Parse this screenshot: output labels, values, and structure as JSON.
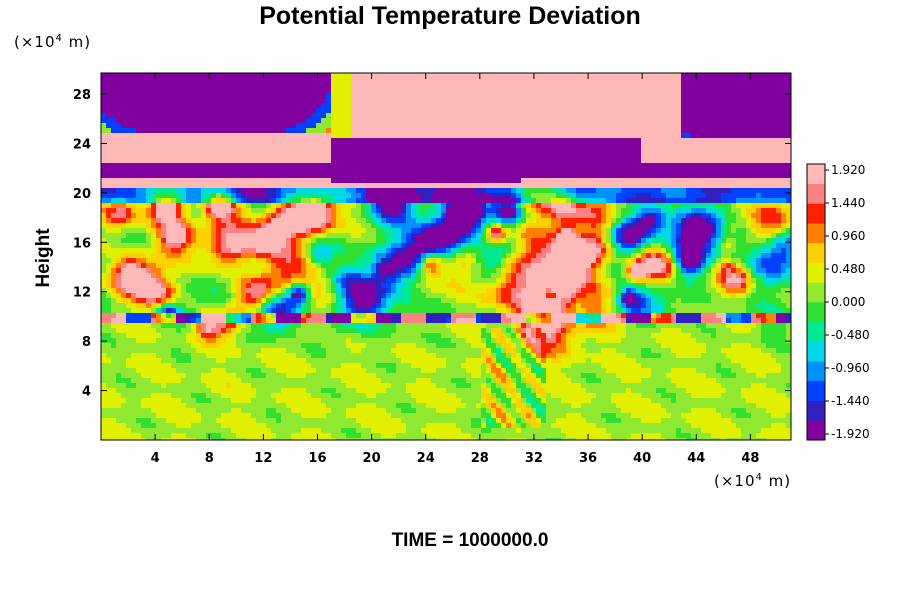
{
  "chart_data": {
    "type": "heatmap",
    "title": "Potential Temperature Deviation",
    "xlabel": "",
    "ylabel": "Height",
    "x_unit": {
      "prefix": "(×10",
      "exp": "4",
      "suffix": " m)"
    },
    "y_unit": {
      "prefix": "(×10",
      "exp": "4",
      "suffix": " m)"
    },
    "xlim": [
      0,
      51
    ],
    "ylim": [
      0,
      29.7
    ],
    "x_ticks": [
      "4",
      "8",
      "12",
      "16",
      "20",
      "24",
      "28",
      "32",
      "36",
      "40",
      "44",
      "48"
    ],
    "y_ticks": [
      "4",
      "8",
      "12",
      "16",
      "20",
      "24",
      "28"
    ],
    "colorbar": {
      "range": [
        -1.92,
        1.92
      ],
      "tick_labels": [
        "1.920",
        "1.440",
        "0.960",
        "0.480",
        "0.000",
        "-0.480",
        "-0.960",
        "-1.440",
        "-1.920"
      ],
      "colors": [
        "#8000a0",
        "#3020c0",
        "#0040ff",
        "#0090ff",
        "#00d8e8",
        "#00e890",
        "#30e030",
        "#90e830",
        "#e0f000",
        "#ffd000",
        "#ff8000",
        "#ff2000",
        "#ff8080",
        "#ffb8b8"
      ]
    },
    "field_regions": [
      {
        "name": "upper-purple-band",
        "y_range": [
          20.4,
          24.6
        ],
        "dominant_value": -1.92
      },
      {
        "name": "upper-pink-dome",
        "x_range": [
          20,
          42
        ],
        "y_range": [
          23,
          29.7
        ],
        "dominant_value": 1.92
      },
      {
        "name": "tropopause-pink-layer",
        "y_range": [
          20.3,
          21.5
        ],
        "dominant_value": 1.92
      },
      {
        "name": "mid-level-mixed",
        "y_range": [
          10,
          20
        ],
        "dominant_value": 0.1
      },
      {
        "name": "lower-level-green",
        "y_range": [
          0,
          9
        ],
        "dominant_value": 0.2
      }
    ]
  },
  "footer": {
    "time_label": "TIME = 1000000.0"
  }
}
